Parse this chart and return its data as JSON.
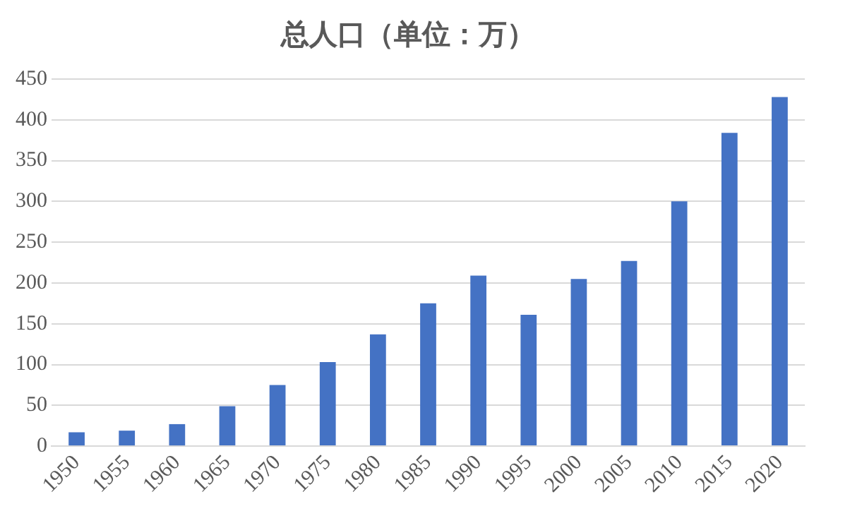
{
  "chart_data": {
    "type": "bar",
    "title": "总人口（单位：万）",
    "categories": [
      "1950",
      "1955",
      "1960",
      "1965",
      "1970",
      "1975",
      "1980",
      "1985",
      "1990",
      "1995",
      "2000",
      "2005",
      "2010",
      "2015",
      "2020"
    ],
    "values": [
      17,
      19,
      27,
      49,
      75,
      103,
      137,
      175,
      209,
      161,
      205,
      227,
      300,
      384,
      428
    ],
    "color": "#4472c4",
    "ylim": [
      0,
      450
    ],
    "yticks": [
      0,
      50,
      100,
      150,
      200,
      250,
      300,
      350,
      400,
      450
    ],
    "grid": "y",
    "legend": false
  }
}
